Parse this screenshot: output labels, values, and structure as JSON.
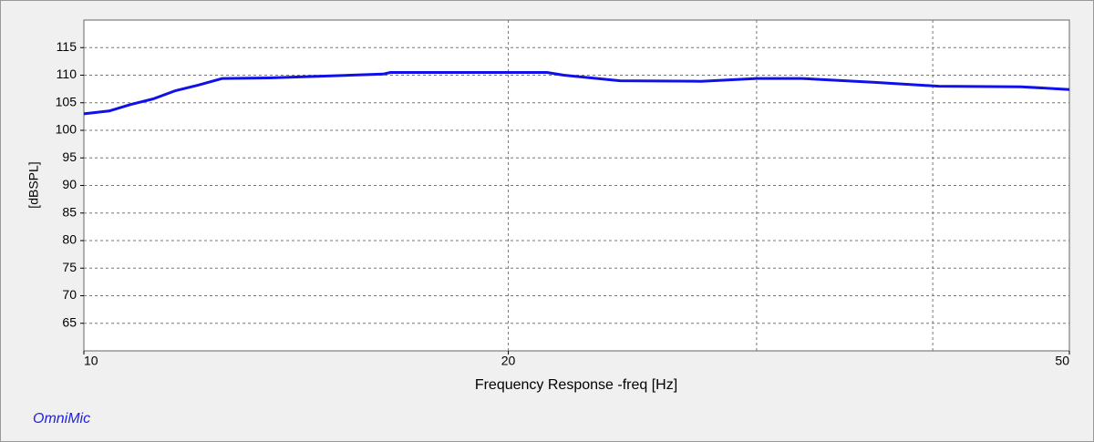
{
  "chart_data": {
    "type": "line",
    "xlabel": "Frequency Response -freq [Hz]",
    "ylabel": "[dBSPL]",
    "brand": "OmniMic",
    "x": [
      10,
      10.42,
      10.8,
      11.2,
      11.62,
      12.05,
      12.54,
      13.52,
      16.3,
      16.5,
      18.4,
      21.3,
      21.9,
      24.0,
      27.4,
      30,
      32.3,
      36.4,
      40.4,
      46.2,
      50
    ],
    "series": [
      {
        "color": "#1010e8",
        "values": [
          103.0,
          103.5,
          104.7,
          105.7,
          107.2,
          108.2,
          109.4,
          109.5,
          110.2,
          110.5,
          110.5,
          110.5,
          110.0,
          109.0,
          108.9,
          109.4,
          109.4,
          108.7,
          108.0,
          107.9,
          107.4
        ]
      }
    ],
    "xlim": [
      10,
      50
    ],
    "xticks": [
      10,
      20,
      50
    ],
    "xgridlines": [
      20,
      30,
      40
    ],
    "xlog": true,
    "ylim": [
      60,
      120
    ],
    "yticks": [
      65,
      70,
      75,
      80,
      85,
      90,
      95,
      100,
      105,
      110,
      115
    ],
    "grid": true
  }
}
